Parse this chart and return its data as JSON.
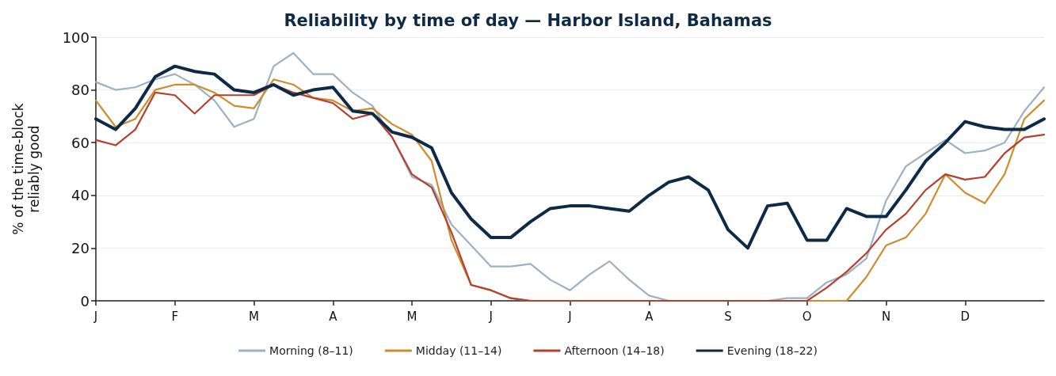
{
  "chart_data": {
    "type": "line",
    "title": "Reliability by time of day — Harbor Island, Bahamas",
    "ylabel": "% of the time-block reliably good",
    "categories": [
      "J",
      null,
      null,
      null,
      "F",
      null,
      null,
      null,
      "M",
      null,
      null,
      null,
      "A",
      null,
      null,
      null,
      "M",
      null,
      null,
      null,
      "J",
      null,
      null,
      null,
      "J",
      null,
      null,
      null,
      "A",
      null,
      null,
      null,
      "S",
      null,
      null,
      null,
      "O",
      null,
      null,
      null,
      "N",
      null,
      null,
      null,
      "D",
      null,
      null,
      null,
      null
    ],
    "ylim": [
      0,
      100
    ],
    "yticks": [
      0,
      20,
      40,
      60,
      80,
      100
    ],
    "grid": "y",
    "legend": "bottom",
    "marker": "none",
    "line_style": "solid",
    "series": [
      {
        "name": "Morning (8–11)",
        "color": "#9bb1c6",
        "values": [
          83,
          80,
          81,
          84,
          86,
          82,
          76,
          66,
          69,
          89,
          94,
          86,
          86,
          79,
          74,
          62,
          47,
          44,
          29,
          21,
          13,
          13,
          14,
          8,
          4,
          10,
          15,
          8,
          2,
          0,
          0,
          0,
          0,
          0,
          0,
          1,
          1,
          7,
          10,
          16,
          38,
          51,
          56,
          61,
          56,
          57,
          60,
          72,
          81
        ]
      },
      {
        "name": "Midday (11–14)",
        "color": "#d08c2a",
        "values": [
          76,
          66,
          69,
          80,
          82,
          82,
          79,
          74,
          73,
          84,
          82,
          77,
          76,
          72,
          73,
          67,
          63,
          53,
          23,
          6,
          4,
          1,
          0,
          0,
          0,
          0,
          0,
          0,
          0,
          0,
          0,
          0,
          0,
          0,
          0,
          0,
          0,
          0,
          0,
          9,
          21,
          24,
          33,
          48,
          41,
          37,
          48,
          69,
          76
        ]
      },
      {
        "name": "Afternoon (14–18)",
        "color": "#b5402d",
        "values": [
          61,
          59,
          65,
          79,
          78,
          71,
          78,
          78,
          78,
          82,
          79,
          77,
          75,
          69,
          71,
          62,
          48,
          43,
          26,
          6,
          4,
          1,
          0,
          0,
          0,
          0,
          0,
          0,
          0,
          0,
          0,
          0,
          0,
          0,
          0,
          0,
          0,
          5,
          11,
          18,
          27,
          33,
          42,
          48,
          46,
          47,
          56,
          62,
          63
        ]
      },
      {
        "name": "Evening (18–22)",
        "color": "#0d2a47",
        "values": [
          69,
          65,
          73,
          85,
          89,
          87,
          86,
          80,
          79,
          82,
          78,
          80,
          81,
          72,
          71,
          64,
          62,
          58,
          41,
          31,
          24,
          24,
          30,
          35,
          36,
          36,
          35,
          34,
          40,
          45,
          47,
          42,
          27,
          20,
          36,
          37,
          23,
          23,
          35,
          32,
          32,
          42,
          53,
          60,
          68,
          66,
          65,
          65,
          69
        ]
      }
    ]
  }
}
